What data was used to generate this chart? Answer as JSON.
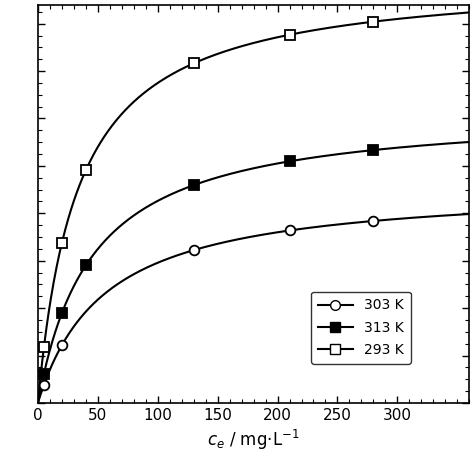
{
  "xlabel": "$c_{e}$ / mg·L$^{-1}$",
  "xlim": [
    0,
    360
  ],
  "ylim": [
    0,
    420
  ],
  "xticks": [
    0,
    50,
    100,
    150,
    200,
    250,
    300
  ],
  "series": [
    {
      "label": "303 K",
      "marker": "o",
      "fillstyle": "none",
      "color": "black",
      "scatter_x": [
        5,
        20,
        130,
        210,
        280
      ],
      "Qmax": 230,
      "KL": 0.018
    },
    {
      "label": "313 K",
      "marker": "s",
      "fillstyle": "full",
      "color": "black",
      "scatter_x": [
        5,
        20,
        40,
        130,
        210,
        280
      ],
      "Qmax": 310,
      "KL": 0.022
    },
    {
      "label": "293 K",
      "marker": "s",
      "fillstyle": "none",
      "color": "black",
      "scatter_x": [
        5,
        20,
        40,
        130,
        210,
        280
      ],
      "Qmax": 450,
      "KL": 0.03
    }
  ],
  "figsize": [
    4.74,
    4.74
  ],
  "dpi": 100
}
